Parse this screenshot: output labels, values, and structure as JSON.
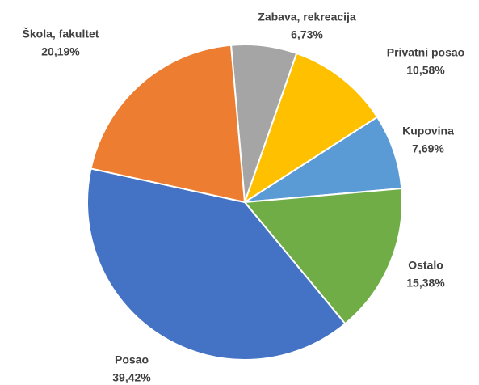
{
  "chart_data": {
    "type": "pie",
    "categories": [
      "Zabava, rekreacija",
      "Privatni posao",
      "Kupovina",
      "Ostalo",
      "Posao",
      "Škola, fakultet"
    ],
    "values": [
      6.73,
      10.58,
      7.69,
      15.38,
      39.42,
      20.19
    ],
    "value_labels": [
      "6,73%",
      "10,58%",
      "7,69%",
      "15,38%",
      "39,42%",
      "20,19%"
    ],
    "colors": [
      "#a5a5a5",
      "#ffc000",
      "#5b9bd5",
      "#70ad47",
      "#4472c4",
      "#ed7d31"
    ]
  }
}
